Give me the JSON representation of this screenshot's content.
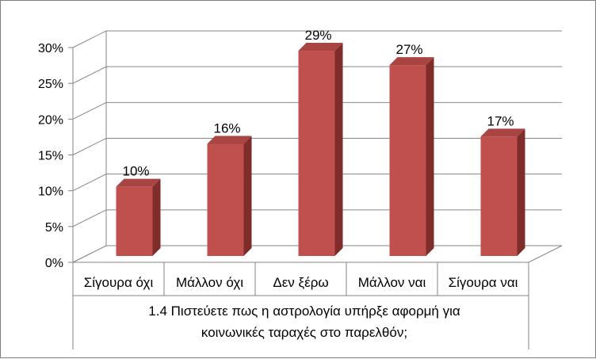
{
  "chart_data": {
    "type": "bar",
    "categories": [
      "Σίγουρα όχι",
      "Μάλλον όχι",
      "Δεν ξέρω",
      "Μάλλον ναι",
      "Σίγουρα ναι"
    ],
    "values": [
      10,
      16,
      29,
      27,
      17
    ],
    "value_labels": [
      "10%",
      "16%",
      "29%",
      "27%",
      "17%"
    ],
    "y_ticks": [
      "0%",
      "5%",
      "10%",
      "15%",
      "20%",
      "25%",
      "30%"
    ],
    "ylim": [
      0,
      30
    ],
    "grid": true,
    "legend": "none",
    "group_label_line1": "1.4 Πιστεύετε πως η αστρολογία υπήρξε αφορμή για",
    "group_label_line2": "κοινωνικές ταραχές στο παρελθόν;",
    "bar_color": "#c0504d",
    "bar_side_color": "#7f2d2b",
    "bar_top_color": "#a84542"
  }
}
